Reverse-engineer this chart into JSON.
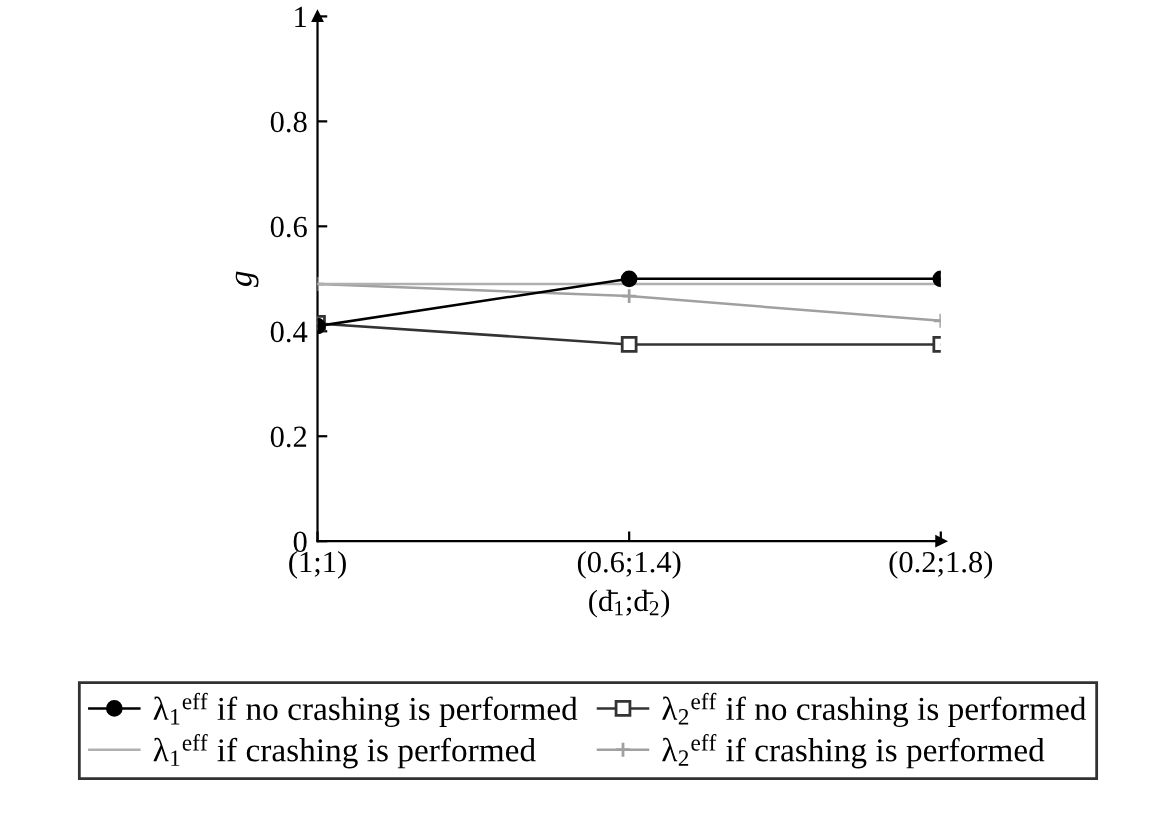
{
  "chart_data": {
    "type": "line",
    "xlabel": "(d̄$_{1}$;d̄$_{2}$)",
    "ylabel": "g",
    "categories": [
      "(1;1)",
      "(0.6;1.4)",
      "(0.2;1.8)"
    ],
    "ylim": [
      0,
      1
    ],
    "yticks": [
      0,
      0.2,
      0.4,
      0.6,
      0.8,
      1
    ],
    "grid": false,
    "legend": "bottom",
    "series": [
      {
        "name": "λ$_{1}$$^{eff}$ if no crashing is performed",
        "color": "#000000",
        "marker": "circle",
        "values": [
          0.41,
          0.5,
          0.5
        ]
      },
      {
        "name": "λ$_{2}$$^{eff}$ if no crashing is performed",
        "color": "#333333",
        "marker": "square",
        "values": [
          0.415,
          0.375,
          0.375
        ]
      },
      {
        "name": "λ$_{1}$$^{eff}$ if crashing is performed",
        "color": "#b0b0b0",
        "marker": "none",
        "values": [
          0.49,
          0.49,
          0.49
        ]
      },
      {
        "name": "λ$_{2}$$^{eff}$ if crashing is performed",
        "color": "#a0a0a0",
        "marker": "cross",
        "values": [
          0.49,
          0.467,
          0.42
        ]
      }
    ]
  }
}
